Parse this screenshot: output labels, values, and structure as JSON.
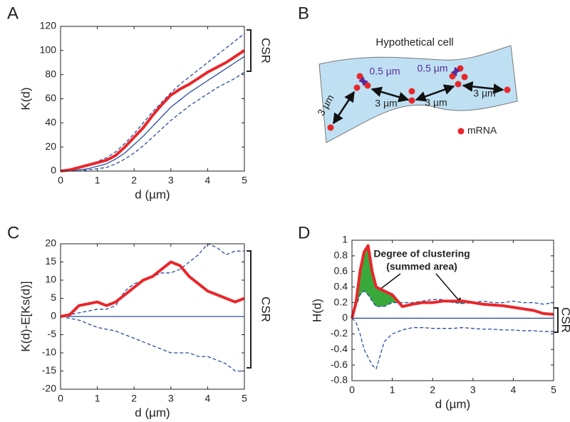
{
  "chart_data": [
    {
      "type": "line",
      "panel": "A",
      "ylabel": "K(d)",
      "xlabel": "d (µm)",
      "annotation": "CSR",
      "x": [
        0,
        0.25,
        0.5,
        0.75,
        1,
        1.25,
        1.5,
        1.75,
        2,
        2.25,
        2.5,
        2.75,
        3,
        3.25,
        3.5,
        3.75,
        4,
        4.25,
        4.5,
        4.75,
        5
      ],
      "series": [
        {
          "color": "#e8272b",
          "linestyle": "solid",
          "values": [
            0,
            1,
            3,
            5,
            7,
            9,
            13,
            20,
            28,
            36,
            46,
            55,
            63,
            68,
            72,
            77,
            82,
            86,
            90,
            95,
            100
          ]
        },
        {
          "color": "#2b4ea2",
          "linestyle": "solid",
          "values": [
            0,
            0.5,
            1,
            2,
            4,
            6,
            10,
            15,
            22,
            29,
            37,
            45,
            53,
            59,
            65,
            70,
            75,
            80,
            85,
            90,
            95
          ]
        },
        {
          "color": "#2b4ea2",
          "linestyle": "dashed",
          "values": [
            0,
            1,
            3,
            5,
            8,
            11,
            16,
            23,
            31,
            40,
            49,
            57,
            65,
            72,
            78,
            84,
            90,
            96,
            102,
            108,
            114
          ]
        },
        {
          "color": "#2b4ea2",
          "linestyle": "dashed",
          "values": [
            0,
            0,
            0,
            1,
            2,
            3,
            6,
            10,
            15,
            21,
            28,
            35,
            42,
            48,
            54,
            59,
            64,
            69,
            73,
            77,
            82
          ]
        }
      ],
      "xlim": [
        0,
        5
      ],
      "xticks": [
        0,
        1,
        2,
        3,
        4,
        5
      ],
      "ylim": [
        0,
        120
      ],
      "yticks": [
        0,
        20,
        40,
        60,
        80,
        100,
        120
      ]
    },
    {
      "type": "line",
      "panel": "C",
      "ylabel": "K(d)-E[Ks(d)]",
      "xlabel": "d (µm)",
      "annotation": "CSR",
      "x": [
        0,
        0.25,
        0.5,
        0.75,
        1,
        1.25,
        1.5,
        1.75,
        2,
        2.25,
        2.5,
        2.75,
        3,
        3.25,
        3.5,
        3.75,
        4,
        4.25,
        4.5,
        4.75,
        5
      ],
      "series": [
        {
          "color": "#e8272b",
          "linestyle": "solid",
          "values": [
            0,
            0.5,
            3,
            3.5,
            4,
            3,
            4,
            6,
            8,
            10,
            11,
            13,
            15,
            14,
            11,
            9,
            7,
            6,
            5,
            4,
            5
          ]
        },
        {
          "color": "#2b4ea2",
          "linestyle": "solid",
          "values": [
            0,
            0,
            0,
            0,
            0,
            0,
            0,
            0,
            0,
            0,
            0,
            0,
            0,
            0,
            0,
            0,
            0,
            0,
            0,
            0,
            0
          ]
        },
        {
          "color": "#2b4ea2",
          "linestyle": "dashed",
          "values": [
            0,
            0.5,
            1,
            1.5,
            2,
            2,
            3,
            7,
            9,
            10,
            11,
            12,
            12,
            13,
            15,
            17,
            20,
            19,
            17,
            18,
            18
          ]
        },
        {
          "color": "#2b4ea2",
          "linestyle": "dashed",
          "values": [
            0,
            -0.5,
            -1,
            -2,
            -3,
            -3.5,
            -4,
            -5,
            -6,
            -7,
            -8,
            -9,
            -10,
            -10,
            -10,
            -11,
            -11,
            -12,
            -13,
            -15,
            -15
          ]
        }
      ],
      "xlim": [
        0,
        5
      ],
      "xticks": [
        0,
        1,
        2,
        3,
        4,
        5
      ],
      "ylim": [
        -20,
        20
      ],
      "yticks": [
        -20,
        -15,
        -10,
        -5,
        0,
        5,
        10,
        15,
        20
      ]
    },
    {
      "type": "line",
      "panel": "D",
      "ylabel": "H(d)",
      "xlabel": "d (µm)",
      "annotation": "CSR",
      "notes": [
        "Degree of clustering",
        "(summed area)"
      ],
      "fill_color": "#3aa93c",
      "x": [
        0,
        0.1,
        0.2,
        0.3,
        0.4,
        0.5,
        0.6,
        0.8,
        1,
        1.25,
        1.5,
        1.75,
        2,
        2.25,
        2.5,
        2.75,
        3,
        3.25,
        3.5,
        3.75,
        4,
        4.25,
        4.5,
        4.75,
        5
      ],
      "series": [
        {
          "color": "#e8272b",
          "linestyle": "solid",
          "values": [
            0,
            0.2,
            0.6,
            0.85,
            0.93,
            0.6,
            0.4,
            0.35,
            0.3,
            0.15,
            0.18,
            0.2,
            0.2,
            0.22,
            0.22,
            0.22,
            0.2,
            0.18,
            0.17,
            0.16,
            0.14,
            0.12,
            0.1,
            0.06,
            0.05
          ]
        },
        {
          "color": "#2b4ea2",
          "linestyle": "solid",
          "values": [
            0,
            0,
            0,
            0,
            0,
            0,
            0,
            0,
            0,
            0,
            0,
            0,
            0,
            0,
            0,
            0,
            0,
            0,
            0,
            0,
            0,
            0,
            0,
            0,
            0
          ]
        },
        {
          "color": "#2b4ea2",
          "linestyle": "dashed",
          "values": [
            0,
            0.15,
            0.3,
            0.35,
            0.3,
            0.22,
            0.15,
            0.15,
            0.2,
            0.2,
            0.2,
            0.22,
            0.24,
            0.24,
            0.2,
            0.19,
            0.2,
            0.22,
            0.2,
            0.2,
            0.22,
            0.2,
            0.2,
            0.18,
            0.2
          ]
        },
        {
          "color": "#2b4ea2",
          "linestyle": "dashed",
          "values": [
            0,
            -0.05,
            -0.2,
            -0.4,
            -0.5,
            -0.6,
            -0.65,
            -0.3,
            -0.2,
            -0.15,
            -0.12,
            -0.12,
            -0.13,
            -0.13,
            -0.13,
            -0.12,
            -0.13,
            -0.14,
            -0.14,
            -0.15,
            -0.15,
            -0.16,
            -0.16,
            -0.17,
            -0.17
          ]
        }
      ],
      "xlim": [
        0,
        5
      ],
      "xticks": [
        0,
        1,
        2,
        3,
        4,
        5
      ],
      "ylim": [
        -0.8,
        1
      ],
      "yticks": [
        -0.8,
        -0.6,
        -0.4,
        -0.2,
        0,
        0.2,
        0.4,
        0.6,
        0.8,
        1
      ]
    }
  ],
  "diagram": {
    "panel": "B",
    "title": "Hypothetical cell",
    "legend": "mRNA",
    "labels": [
      "0.5 µm",
      "0.5 µm",
      "3 µm",
      "3 µm",
      "3 µm",
      "3 µm"
    ]
  }
}
